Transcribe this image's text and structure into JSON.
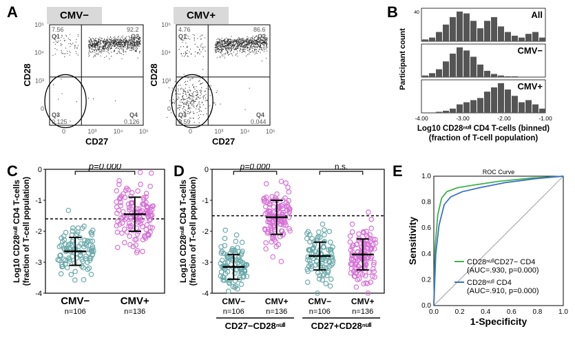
{
  "panels": {
    "A": {
      "label": "A",
      "left_group": "CMV−",
      "right_group": "CMV+",
      "yaxis": "CD28",
      "xaxis": "CD27",
      "quad_left": {
        "Q1": "7.56",
        "Q2": "92.2",
        "Q3": "0.125",
        "Q4": "0.126"
      },
      "quad_right": {
        "Q1": "4.76",
        "Q2": "86.6",
        "Q3": "8.59",
        "Q4": "0.044"
      },
      "ticks": [
        "0",
        "10³",
        "10⁴",
        "10⁵"
      ]
    },
    "B": {
      "label": "B",
      "rows": [
        "All",
        "CMV−",
        "CMV+"
      ],
      "xaxis_l1": "Log10 CD28ⁿᵘˡˡ CD4 T-cells (binned)",
      "xaxis_l2": "(fraction of T-cell population)",
      "yaxis": "Participant count",
      "xticks": [
        "-4.00",
        "-3.00",
        "-2.00",
        "-1.00"
      ],
      "yticks_max": "40"
    },
    "C": {
      "label": "C",
      "yaxis_l1": "Log10 CD28ⁿᵘˡˡ CD4 T-cells",
      "yaxis_l2": "(fraction of T-cell population)",
      "xgroups": [
        {
          "name": "CMV−",
          "n": "n=106"
        },
        {
          "name": "CMV+",
          "n": "n=136"
        }
      ],
      "pval": "p=0.000",
      "yticks": [
        "0",
        "-1",
        "-2",
        "-3",
        "-4"
      ],
      "threshold_y": -1.6,
      "colors": {
        "cmv_neg": "#6aa9a9",
        "cmv_pos": "#d671d6"
      }
    },
    "D": {
      "label": "D",
      "yaxis_l1": "Log10 CD28ⁿᵘˡˡ CD4 T-cells",
      "yaxis_l2": "(fraction of T-cell population)",
      "xgroups": [
        {
          "name": "CMV−",
          "n": "n=106"
        },
        {
          "name": "CMV+",
          "n": "n=136"
        },
        {
          "name": "CMV−",
          "n": "n=106"
        },
        {
          "name": "CMV+",
          "n": "n=136"
        }
      ],
      "bottom_groups": [
        "CD27−CD28ⁿᵘˡˡ",
        "CD27+CD28ⁿᵘˡˡ"
      ],
      "p_left": "p=0.000",
      "p_right": "n.s.",
      "yticks": [
        "0",
        "-1",
        "-2",
        "-3",
        "-4"
      ],
      "threshold_y": -1.5,
      "colors": {
        "cmv_neg": "#6aa9a9",
        "cmv_pos": "#d671d6"
      }
    },
    "E": {
      "label": "E",
      "title": "ROC Curve",
      "yaxis": "Sensitivity",
      "xaxis": "1-Specificity",
      "ticks": [
        "0.0",
        "0.2",
        "0.4",
        "0.6",
        "0.8",
        "1.0"
      ],
      "legend": [
        {
          "color": "#3bb24a",
          "l1": "CD28ⁿᵘˡˡCD27− CD4",
          "l2": "(AUC=.930, p=0.000)"
        },
        {
          "color": "#3a6fc9",
          "l1": "CD28ⁿᵘˡˡ CD4",
          "l2": "(AUC=.910, p=0.000)"
        }
      ]
    }
  },
  "facs_dot_color": "#2a2a2a",
  "scatter_seed": 42
}
